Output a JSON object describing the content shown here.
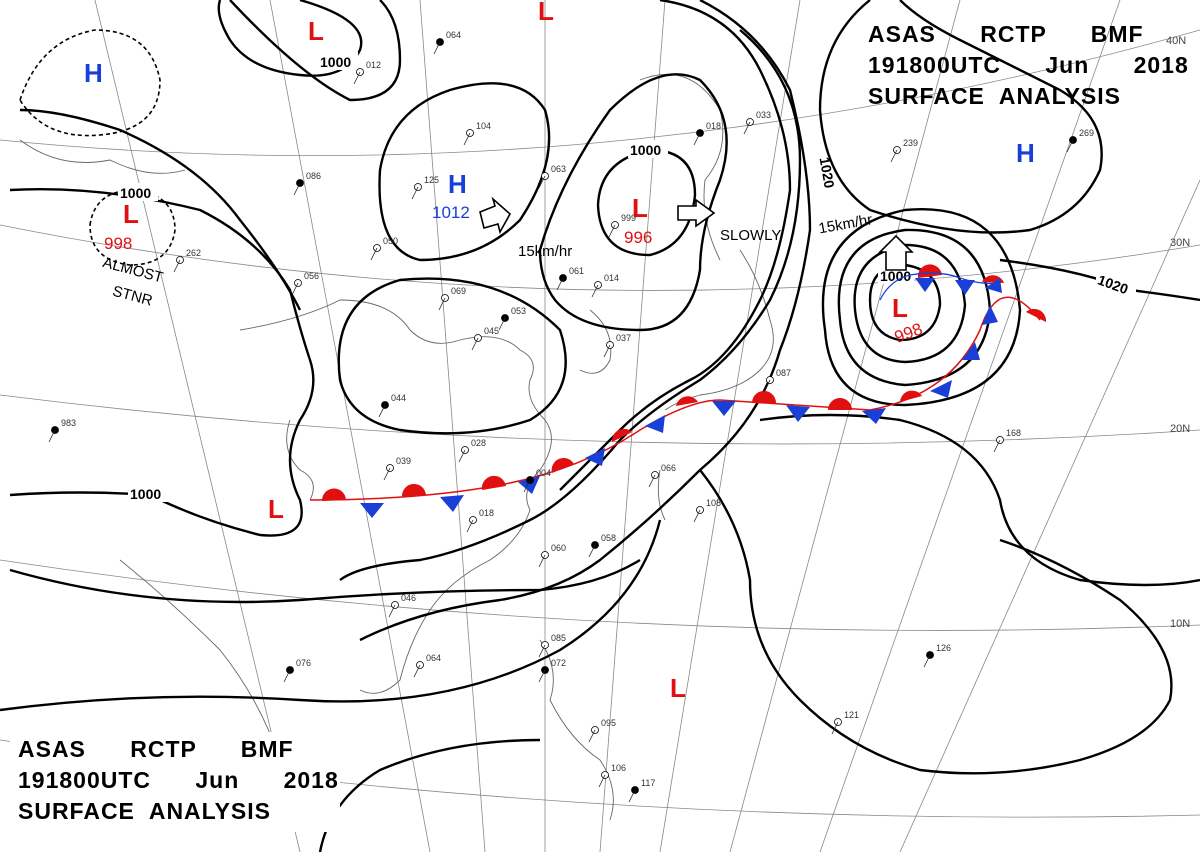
{
  "header": {
    "top_right": [
      "ASAS      RCTP      BMF",
      "191800UTC      Jun      2018",
      "SURFACE  ANALYSIS"
    ],
    "bottom_left": [
      "ASAS      RCTP      BMF",
      "191800UTC      Jun      2018",
      "SURFACE  ANALYSIS"
    ]
  },
  "latitude_labels": [
    "40N",
    "30N",
    "20N",
    "10N"
  ],
  "isobar_labels": {
    "1000": "1000",
    "1020": "1020"
  },
  "pressure_centers": [
    {
      "type": "L",
      "value": "998"
    },
    {
      "type": "H",
      "value": "1012"
    },
    {
      "type": "L",
      "value": "996"
    },
    {
      "type": "L",
      "value": "998"
    },
    {
      "type": "H",
      "value": ""
    },
    {
      "type": "H",
      "value": ""
    },
    {
      "type": "L",
      "value": ""
    },
    {
      "type": "L",
      "value": ""
    },
    {
      "type": "L",
      "value": ""
    },
    {
      "type": "L",
      "value": ""
    }
  ],
  "motion_labels": {
    "almost": "ALMOST",
    "stnr": "STNR",
    "h_motion": "15km/hr",
    "l_motion": "SLOWLY",
    "east_motion": "15km/hr"
  },
  "colors": {
    "high": "#1a3fd6",
    "low": "#e01010",
    "warm_front": "#e01010",
    "cold_front": "#1a3fd6"
  },
  "station_samples": [
    "064",
    "012",
    "104",
    "086",
    "125",
    "063",
    "018",
    "033",
    "239",
    "269",
    "050",
    "056",
    "061",
    "014",
    "069",
    "053",
    "045",
    "037",
    "044",
    "028",
    "039",
    "004",
    "018",
    "066",
    "058",
    "060",
    "046",
    "076",
    "064",
    "085",
    "072",
    "095",
    "106",
    "117",
    "108",
    "168",
    "126",
    "121",
    "087",
    "983",
    "262",
    "999"
  ]
}
